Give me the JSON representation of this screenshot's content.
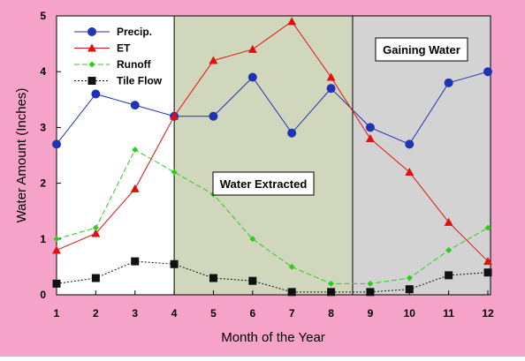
{
  "chart_data": {
    "type": "line",
    "title": "",
    "xlabel": "Month of the Year",
    "ylabel": "Water Amount (Inches)",
    "x": [
      1,
      2,
      3,
      4,
      5,
      6,
      7,
      8,
      9,
      10,
      11,
      12
    ],
    "xlim": [
      1,
      12
    ],
    "ylim": [
      0,
      5
    ],
    "x_ticks": [
      "1",
      "2",
      "3",
      "4",
      "5",
      "6",
      "7",
      "8",
      "9",
      "10",
      "11",
      "12"
    ],
    "y_ticks": [
      "0",
      "1",
      "2",
      "3",
      "4",
      "5"
    ],
    "grid": false,
    "legend_position": "top-left",
    "series": [
      {
        "name": "Precip.",
        "color": "#1f33b5",
        "marker": "circle",
        "line": "solid",
        "values": [
          2.7,
          3.6,
          3.4,
          3.2,
          3.2,
          3.9,
          2.9,
          3.7,
          3.0,
          2.7,
          3.8,
          4.0
        ]
      },
      {
        "name": "ET",
        "color": "#e01010",
        "marker": "triangle",
        "line": "solid",
        "values": [
          0.8,
          1.1,
          1.9,
          3.2,
          4.2,
          4.4,
          4.9,
          3.9,
          2.8,
          2.2,
          1.3,
          0.6
        ]
      },
      {
        "name": "Runoff",
        "color": "#2ecc1c",
        "marker": "diamond",
        "line": "dashed",
        "values": [
          1.0,
          1.2,
          2.6,
          2.2,
          1.8,
          1.0,
          0.5,
          0.2,
          0.2,
          0.3,
          0.8,
          1.2
        ]
      },
      {
        "name": "Tile Flow",
        "color": "#111111",
        "marker": "square",
        "line": "dotted",
        "values": [
          0.2,
          0.3,
          0.6,
          0.55,
          0.3,
          0.25,
          0.05,
          0.05,
          0.05,
          0.1,
          0.35,
          0.4
        ]
      }
    ],
    "regions": [
      {
        "label": "Water Extracted",
        "x_start": 4,
        "x_end": 8.55,
        "color": "#d1d7bd"
      },
      {
        "label": "Gaining Water",
        "x_start": 8.55,
        "x_end": 12.3,
        "color": "#d3d3d3"
      }
    ]
  },
  "colors": {
    "page_background": "#f5a3c8",
    "plot_background": "#ffffff"
  }
}
